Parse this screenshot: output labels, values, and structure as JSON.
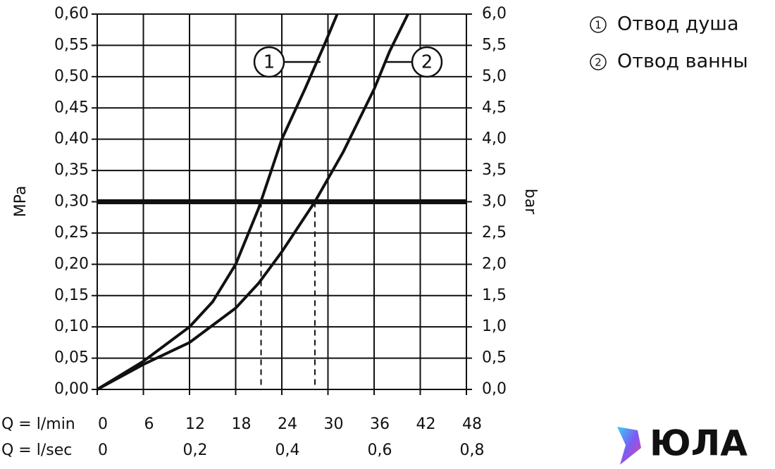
{
  "chart_data": {
    "type": "line",
    "y_label": "MPa",
    "y2_label": "bar",
    "x_label": "Q = l/min",
    "x2_label": "Q = l/sec",
    "xlim": [
      0,
      48
    ],
    "xticks": [
      0,
      6,
      12,
      18,
      24,
      30,
      36,
      42,
      48
    ],
    "x2lim": [
      0,
      0.8
    ],
    "x2ticks": [
      0,
      {
        "value": 0.2,
        "label": "0,2"
      },
      {
        "value": 0.4,
        "label": "0,4"
      },
      {
        "value": 0.6,
        "label": "0,6"
      },
      {
        "value": 0.8,
        "label": "0,8"
      }
    ],
    "ylim": [
      0,
      0.6
    ],
    "yticks": [
      {
        "value": 0,
        "label": "0,00"
      },
      {
        "value": 0.05,
        "label": "0,05"
      },
      {
        "value": 0.1,
        "label": "0,10"
      },
      {
        "value": 0.15,
        "label": "0,15"
      },
      {
        "value": 0.2,
        "label": "0,20"
      },
      {
        "value": 0.25,
        "label": "0,25"
      },
      {
        "value": 0.3,
        "label": "0,30"
      },
      {
        "value": 0.35,
        "label": "0,35"
      },
      {
        "value": 0.4,
        "label": "0,40"
      },
      {
        "value": 0.45,
        "label": "0,45"
      },
      {
        "value": 0.5,
        "label": "0,50"
      },
      {
        "value": 0.55,
        "label": "0,55"
      },
      {
        "value": 0.6,
        "label": "0,60"
      }
    ],
    "y2lim": [
      0,
      6
    ],
    "y2ticks": [
      {
        "value": 0,
        "label": "0,0"
      },
      {
        "value": 0.5,
        "label": "0,5"
      },
      {
        "value": 1,
        "label": "1,0"
      },
      {
        "value": 1.5,
        "label": "1,5"
      },
      {
        "value": 2,
        "label": "2,0"
      },
      {
        "value": 2.5,
        "label": "2,5"
      },
      {
        "value": 3,
        "label": "3,0"
      },
      {
        "value": 3.5,
        "label": "3,5"
      },
      {
        "value": 4,
        "label": "4,0"
      },
      {
        "value": 4.5,
        "label": "4,5"
      },
      {
        "value": 5,
        "label": "5,0"
      },
      {
        "value": 5.5,
        "label": "5,5"
      },
      {
        "value": 6,
        "label": "6,0"
      }
    ],
    "grid": true,
    "highlight_y": 0.3,
    "drop_lines_x": [
      21.3,
      28.3
    ],
    "series": [
      {
        "name": "Отвод душа",
        "label": "1",
        "color": "#111111",
        "x": [
          0,
          6,
          12,
          15,
          18,
          21,
          24,
          27,
          29.5,
          31.2
        ],
        "values": [
          0,
          0.045,
          0.1,
          0.14,
          0.2,
          0.29,
          0.4,
          0.48,
          0.55,
          0.6
        ]
      },
      {
        "name": "Отвод ванны",
        "label": "2",
        "color": "#111111",
        "x": [
          0,
          6,
          12,
          18,
          21,
          24,
          28.3,
          32,
          36,
          38,
          40.4
        ],
        "values": [
          0,
          0.04,
          0.075,
          0.13,
          0.17,
          0.22,
          0.3,
          0.38,
          0.48,
          0.54,
          0.6
        ]
      }
    ],
    "watermark": "ЮЛА"
  }
}
